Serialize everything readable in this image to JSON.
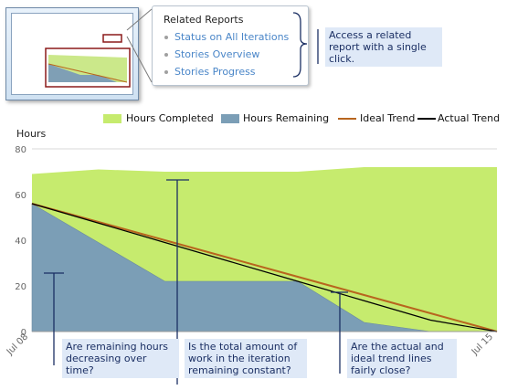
{
  "related_reports": {
    "title": "Related Reports",
    "items": [
      {
        "label": "Status on All Iterations"
      },
      {
        "label": "Stories Overview"
      },
      {
        "label": "Stories Progress"
      }
    ]
  },
  "callouts": {
    "related": "Access a related report with a single click.",
    "remaining": "Are remaining hours decreasing over time?",
    "total": "Is the total amount of work in the iteration remaining constant?",
    "trend": "Are the actual and ideal trend lines fairly close?"
  },
  "colors": {
    "completed": "#c6eb6e",
    "remaining": "#7b9eb6",
    "ideal": "#b8651e",
    "actual": "#000000",
    "callout_bg": "#dfe9f7",
    "callout_line": "#1b2f63"
  },
  "chart_data": {
    "type": "area",
    "ylabel": "Hours",
    "ylim": [
      0,
      80
    ],
    "yticks": [
      0,
      20,
      40,
      60,
      80
    ],
    "x_tick_labels": [
      "Jul 08",
      "Jul 15"
    ],
    "grid": true,
    "legend_position": "top",
    "x": [
      0,
      1,
      2,
      3,
      4,
      5,
      6,
      7
    ],
    "series": [
      {
        "name": "Hours Completed",
        "kind": "area",
        "values": [
          69,
          71,
          70,
          70,
          70,
          72,
          72,
          72
        ]
      },
      {
        "name": "Hours Remaining",
        "kind": "area",
        "values": [
          56,
          39,
          22,
          22,
          22,
          4,
          0,
          0
        ]
      },
      {
        "name": "Ideal Trend",
        "kind": "line",
        "values": [
          56,
          48,
          40,
          32,
          24,
          16,
          8,
          0
        ]
      },
      {
        "name": "Actual Trend",
        "kind": "line",
        "values": [
          56,
          47.5,
          39,
          30.5,
          22,
          13.5,
          5,
          0
        ]
      }
    ]
  }
}
